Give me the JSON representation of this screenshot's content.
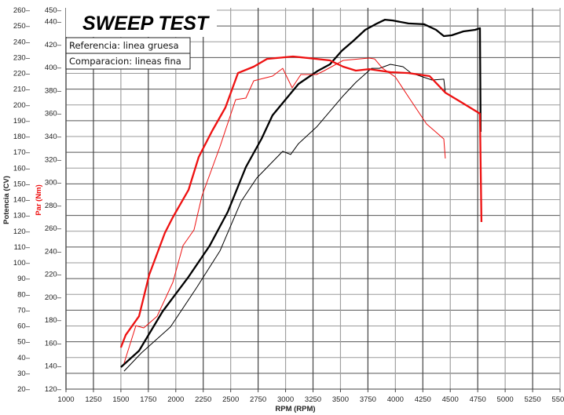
{
  "chart_data": {
    "type": "line",
    "title": "SWEEP TEST",
    "legend": [
      "Referencia: linea gruesa",
      "Comparacion: lineas fina"
    ],
    "legend_position": "top-left",
    "xlabel": "RPM (RPM)",
    "ylabel_left": "Potencia (CV)",
    "ylabel_right": "Par (Nm)",
    "xlim": [
      1000,
      5500
    ],
    "ylim_potencia": [
      20,
      260
    ],
    "ylim_par": [
      120,
      450
    ],
    "grid": true,
    "x_ticks": [
      1000,
      1250,
      1500,
      1750,
      2000,
      2250,
      2500,
      2750,
      3000,
      3250,
      3500,
      3750,
      4000,
      4250,
      4500,
      4750,
      5000,
      5250,
      5500
    ],
    "potencia_ticks": [
      20,
      30,
      40,
      50,
      60,
      70,
      80,
      90,
      100,
      110,
      120,
      130,
      140,
      150,
      160,
      170,
      180,
      190,
      200,
      210,
      220,
      230,
      240,
      250,
      260
    ],
    "par_ticks": [
      120,
      140,
      160,
      180,
      200,
      220,
      240,
      260,
      280,
      300,
      320,
      340,
      360,
      380,
      400,
      420,
      440,
      450
    ],
    "colors": {
      "potencia": "#000000",
      "par": "#ee1111"
    },
    "series": [
      {
        "name": "Potencia referencia (CV)",
        "axis": "potencia",
        "weight": "thick",
        "x": [
          1500,
          1665,
          1880,
          2116,
          2309,
          2474,
          2638,
          2781,
          2881,
          3118,
          3296,
          3404,
          3511,
          3618,
          3726,
          3833,
          3905,
          3976,
          4119,
          4262,
          4370,
          4441,
          4513,
          4620,
          4727,
          4770,
          4777
        ],
        "y": [
          33.9,
          44.3,
          69.2,
          91.1,
          110.9,
          132.3,
          160.6,
          178.5,
          193.4,
          213.3,
          221.7,
          225.7,
          234.2,
          240.6,
          247.6,
          251.6,
          254.0,
          253.5,
          251.6,
          251.1,
          247.6,
          243.6,
          244.1,
          246.6,
          247.6,
          248.6,
          183.0
        ]
      },
      {
        "name": "Potencia comparacion (CV)",
        "axis": "potencia",
        "weight": "thin",
        "x": [
          1529,
          1687,
          1951,
          2188,
          2402,
          2595,
          2738,
          2974,
          3046,
          3118,
          3282,
          3525,
          3640,
          3783,
          3854,
          3955,
          4069,
          4141,
          4334,
          4441,
          4455
        ],
        "y": [
          31.4,
          42.9,
          59.3,
          84.1,
          107.5,
          138.8,
          153.7,
          170.6,
          168.6,
          175.5,
          186.0,
          205.8,
          214.3,
          223.2,
          223.2,
          225.7,
          224.2,
          220.3,
          215.8,
          216.3,
          207.8
        ]
      },
      {
        "name": "Par referencia (Nm)",
        "axis": "par",
        "weight": "thick",
        "x": [
          1500,
          1544,
          1665,
          1758,
          1901,
          1973,
          2116,
          2209,
          2331,
          2452,
          2567,
          2710,
          2831,
          3067,
          3282,
          3404,
          3525,
          3640,
          3761,
          3955,
          4119,
          4312,
          4455,
          4598,
          4749,
          4770,
          4784
        ],
        "y": [
          156.2,
          167.1,
          183.5,
          219.7,
          256.0,
          269.6,
          293.5,
          322.2,
          344.8,
          365.3,
          395.3,
          400.8,
          407.6,
          409.7,
          407.6,
          406.3,
          400.8,
          397.4,
          398.7,
          396.0,
          395.3,
          392.6,
          378.2,
          370.0,
          361.2,
          359.8,
          265.5
        ]
      },
      {
        "name": "Par comparacion (Nm)",
        "axis": "par",
        "weight": "thin",
        "x": [
          1529,
          1637,
          1708,
          1830,
          1973,
          2066,
          2166,
          2238,
          2402,
          2545,
          2638,
          2710,
          2881,
          2974,
          3060,
          3139,
          3282,
          3354,
          3525,
          3761,
          3811,
          3883,
          3998,
          4141,
          4284,
          4441,
          4455
        ],
        "y": [
          142.5,
          175.3,
          173.3,
          183.5,
          212.9,
          245.0,
          258.7,
          288.1,
          331.1,
          372.1,
          373.5,
          388.5,
          392.6,
          399.4,
          382.4,
          394.0,
          394.0,
          397.4,
          406.3,
          408.3,
          407.6,
          399.4,
          392.0,
          371.4,
          350.9,
          337.9,
          320.9
        ]
      }
    ]
  }
}
